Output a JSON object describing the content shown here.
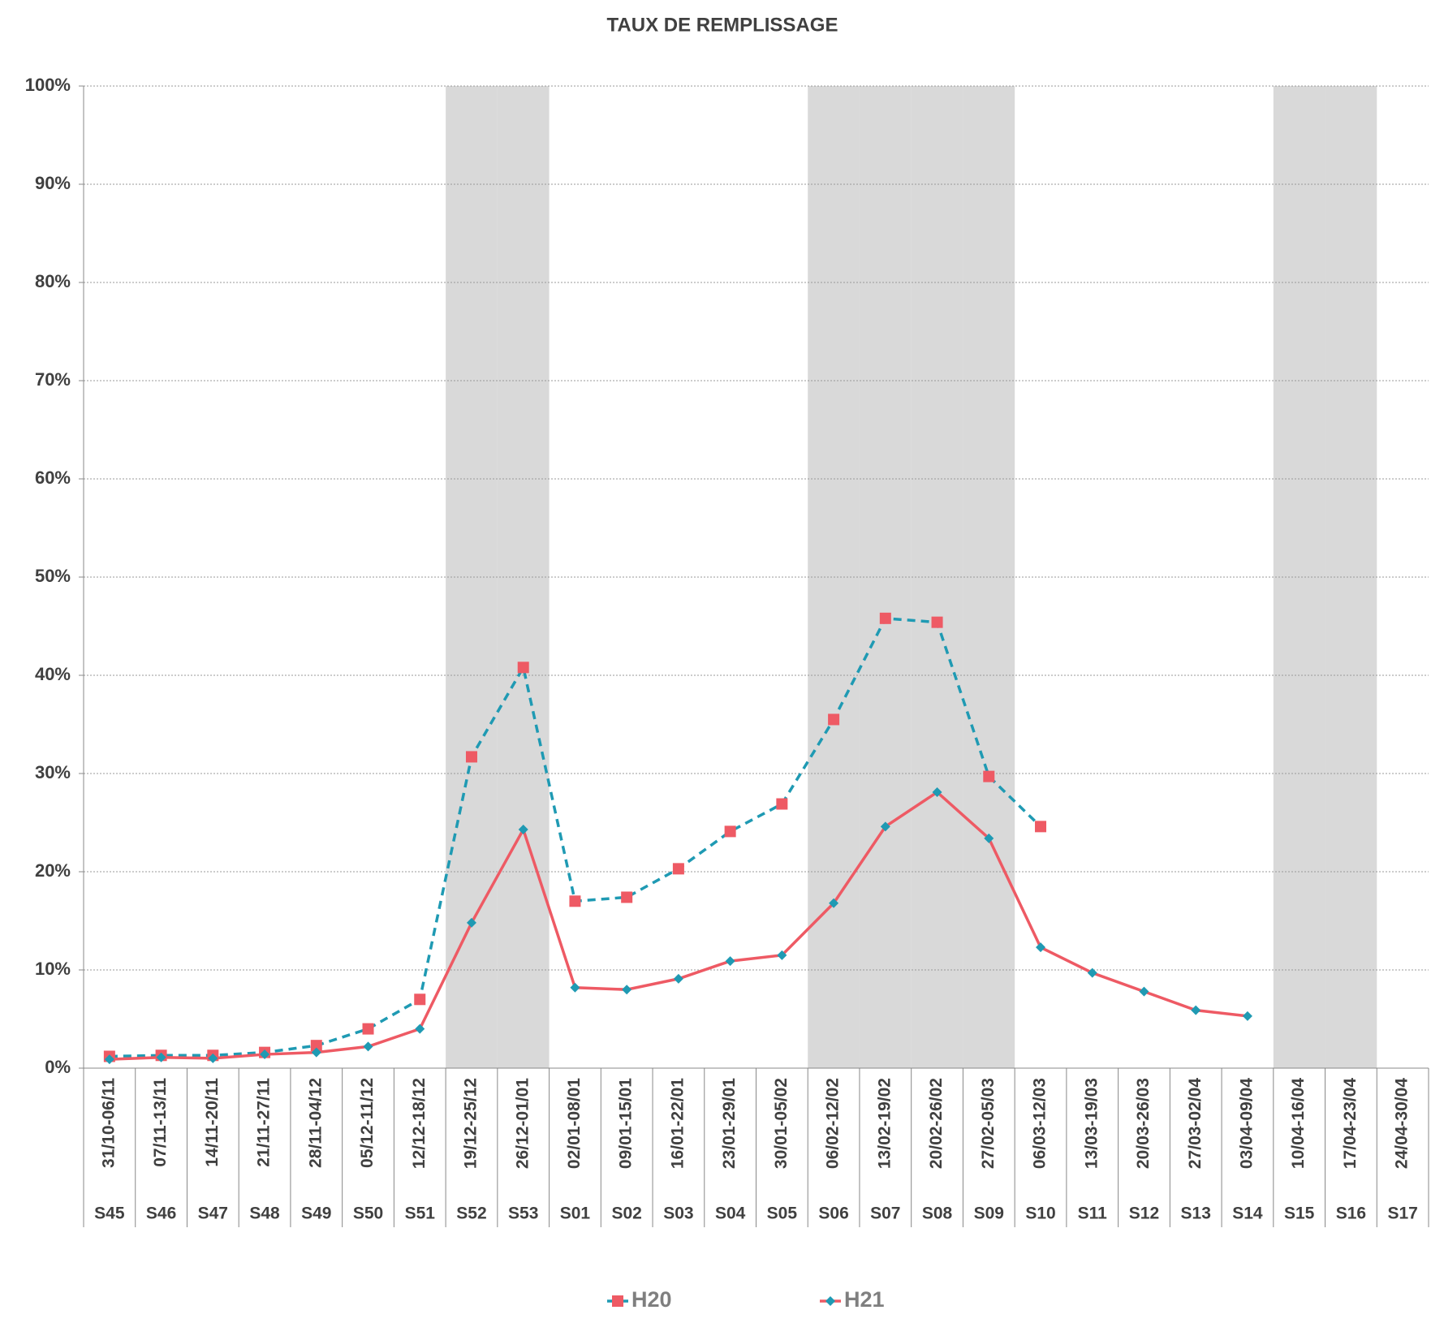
{
  "chart_data": {
    "type": "line",
    "title": "TAUX DE REMPLISSAGE",
    "categories": [
      "S45",
      "S46",
      "S47",
      "S48",
      "S49",
      "S50",
      "S51",
      "S52",
      "S53",
      "S01",
      "S02",
      "S03",
      "S04",
      "S05",
      "S06",
      "S07",
      "S08",
      "S09",
      "S10",
      "S11",
      "S12",
      "S13",
      "S14",
      "S15",
      "S16",
      "S17"
    ],
    "date_ranges": [
      "31/10-06/11",
      "07/11-13/11",
      "14/11-20/11",
      "21/11-27/11",
      "28/11-04/12",
      "05/12-11/12",
      "12/12-18/12",
      "19/12-25/12",
      "26/12-01/01",
      "02/01-08/01",
      "09/01-15/01",
      "16/01-22/01",
      "23/01-29/01",
      "30/01-05/02",
      "06/02-12/02",
      "13/02-19/02",
      "20/02-26/02",
      "27/02-05/03",
      "06/03-12/03",
      "13/03-19/03",
      "20/03-26/03",
      "27/03-02/04",
      "03/04-09/04",
      "10/04-16/04",
      "17/04-23/04",
      "24/04-30/04"
    ],
    "shaded": [
      false,
      false,
      false,
      false,
      false,
      false,
      false,
      true,
      true,
      false,
      false,
      false,
      false,
      false,
      true,
      true,
      true,
      true,
      false,
      false,
      false,
      false,
      false,
      true,
      true,
      false
    ],
    "series": [
      {
        "name": "H20",
        "color": "#1f9ab3",
        "marker_color": "#ee5a64",
        "line_style": "dashed",
        "marker": "square",
        "values": [
          1.2,
          1.3,
          1.3,
          1.6,
          2.3,
          4.0,
          7.0,
          31.7,
          40.8,
          17.0,
          17.4,
          20.3,
          24.1,
          26.9,
          35.5,
          45.8,
          45.4,
          29.7,
          24.6,
          null,
          null,
          null,
          null,
          null,
          null,
          null
        ]
      },
      {
        "name": "H21",
        "color": "#ee5a64",
        "marker_color": "#1f9ab3",
        "line_style": "solid",
        "marker": "diamond",
        "values": [
          0.9,
          1.1,
          1.0,
          1.4,
          1.6,
          2.2,
          4.0,
          14.8,
          24.3,
          8.2,
          8.0,
          9.1,
          10.9,
          11.5,
          16.8,
          24.6,
          28.1,
          23.4,
          12.3,
          9.7,
          7.8,
          5.9,
          5.3,
          null,
          null,
          null
        ]
      }
    ],
    "ylim": [
      0,
      100
    ],
    "yticks": [
      {
        "value": 0,
        "label": "0%"
      },
      {
        "value": 10,
        "label": "10%"
      },
      {
        "value": 20,
        "label": "20%"
      },
      {
        "value": 30,
        "label": "30%"
      },
      {
        "value": 40,
        "label": "40%"
      },
      {
        "value": 50,
        "label": "50%"
      },
      {
        "value": 60,
        "label": "60%"
      },
      {
        "value": 70,
        "label": "70%"
      },
      {
        "value": 80,
        "label": "80%"
      },
      {
        "value": 90,
        "label": "90%"
      },
      {
        "value": 100,
        "label": "100%"
      }
    ],
    "grid": true
  }
}
